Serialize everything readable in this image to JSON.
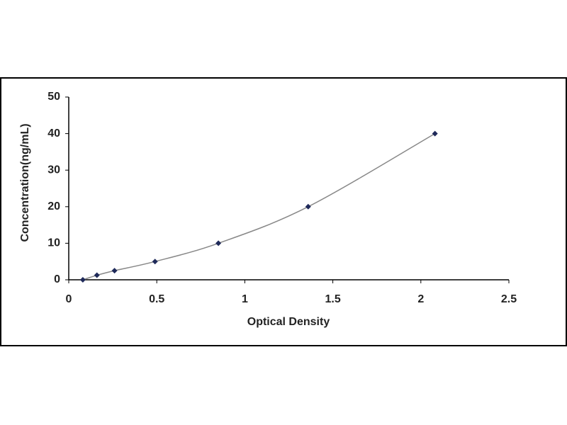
{
  "chart_data": {
    "type": "line",
    "x_label": "Optical Density",
    "y_label": "Concentration(ng/mL)",
    "x": [
      0.08,
      0.16,
      0.26,
      0.49,
      0.85,
      1.36,
      2.08
    ],
    "series": [
      {
        "color": "#1f2a5a",
        "line_color": "#888888",
        "values": [
          0,
          1.25,
          2.5,
          5,
          10,
          20,
          40
        ]
      }
    ],
    "xlim": [
      0,
      2.5
    ],
    "xticks": [
      0,
      0.5,
      1,
      1.5,
      2,
      2.5
    ],
    "ylim": [
      0,
      50
    ],
    "yticks": [
      0,
      10,
      20,
      30,
      40,
      50
    ],
    "grid": false
  }
}
